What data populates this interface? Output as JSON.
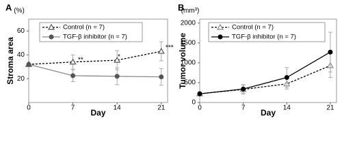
{
  "chart_data": [
    {
      "type": "line",
      "panel": "A",
      "unit": "(%)",
      "y_label": "Stroma area",
      "x_label": "Day",
      "x": [
        0,
        7,
        14,
        21
      ],
      "xlim": [
        0,
        22
      ],
      "xticks": [
        0,
        7,
        14,
        21
      ],
      "ylim": [
        0,
        70
      ],
      "yticks": [
        20,
        40,
        60
      ],
      "series": [
        {
          "name": "Control (n = 7)",
          "color": "#000000",
          "marker_color": "#555555",
          "marker": "triangle-open",
          "line_style": "dashed",
          "values": [
            32,
            34,
            35.5,
            43
          ],
          "errors": [
            0,
            6,
            8,
            8
          ]
        },
        {
          "name": "TGF-β inhibitor (n = 7)",
          "color": "#888888",
          "marker_color": "#555555",
          "marker": "circle",
          "line_style": "solid",
          "values": [
            32,
            22.5,
            22,
            21.5
          ],
          "errors": [
            0,
            5,
            7,
            7
          ]
        }
      ],
      "annotations": [
        "**",
        "*",
        "***"
      ]
    },
    {
      "type": "line",
      "panel": "B",
      "unit": "(mm³)",
      "y_label": "Tumor volume",
      "x_label": "Day",
      "x": [
        0,
        7,
        14,
        21
      ],
      "xlim": [
        0,
        22
      ],
      "xticks": [
        0,
        7,
        14,
        21
      ],
      "ylim": [
        0,
        2100
      ],
      "yticks": [
        0,
        500,
        1000,
        1500,
        2000
      ],
      "series": [
        {
          "name": "Control (n = 7)",
          "color": "#000000",
          "marker_color": "#888888",
          "marker": "triangle-open",
          "line_style": "dashed",
          "values": [
            220,
            330,
            470,
            930
          ],
          "errors": [
            40,
            120,
            130,
            300
          ]
        },
        {
          "name": "TGF-β inhibitor (n = 7)",
          "color": "#000000",
          "marker_color": "#000000",
          "marker": "circle",
          "line_style": "solid",
          "values": [
            220,
            340,
            630,
            1270
          ],
          "errors": [
            40,
            100,
            250,
            500
          ]
        }
      ]
    }
  ]
}
